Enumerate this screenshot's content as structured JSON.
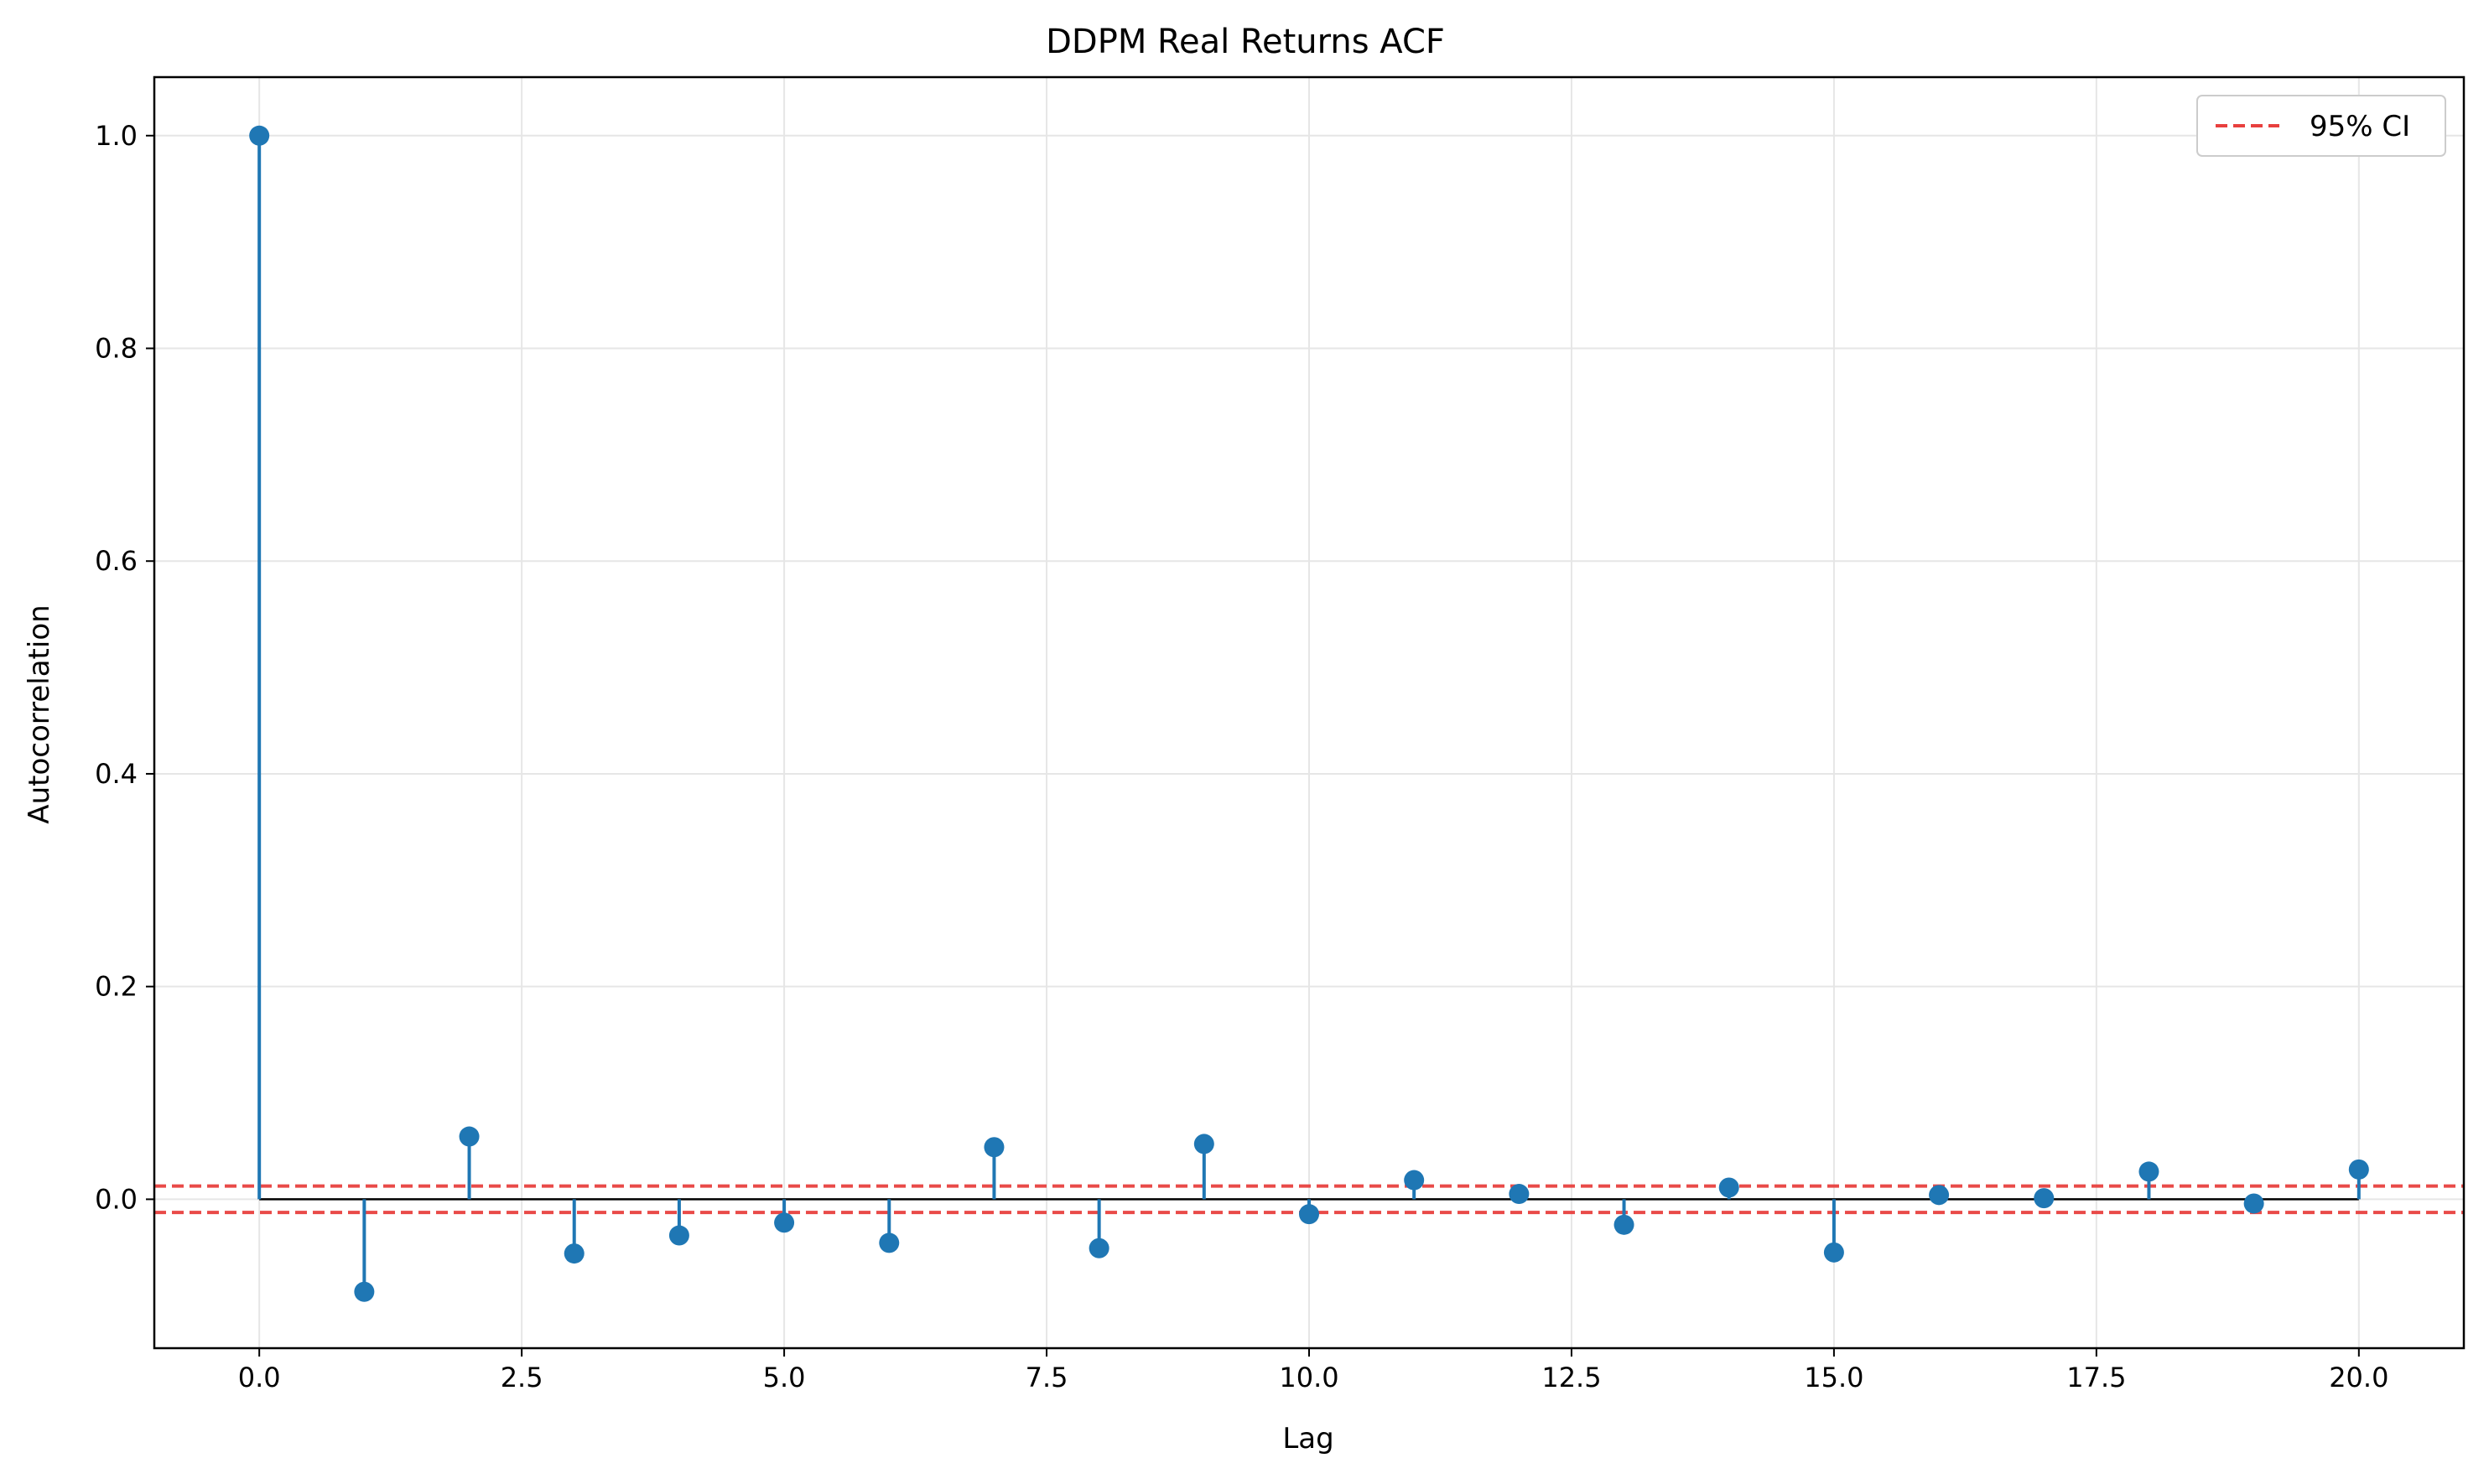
{
  "chart_data": {
    "type": "stem",
    "title": "DDPM Real Returns ACF",
    "xlabel": "Lag",
    "ylabel": "Autocorrelation",
    "xlim": [
      -1,
      21
    ],
    "ylim": [
      -0.14,
      1.055
    ],
    "xticks": [
      0.0,
      2.5,
      5.0,
      7.5,
      10.0,
      12.5,
      15.0,
      17.5,
      20.0
    ],
    "xtick_labels": [
      "0.0",
      "2.5",
      "5.0",
      "7.5",
      "10.0",
      "12.5",
      "15.0",
      "17.5",
      "20.0"
    ],
    "yticks": [
      0.0,
      0.2,
      0.4,
      0.6,
      0.8,
      1.0
    ],
    "ytick_labels": [
      "0.0",
      "0.2",
      "0.4",
      "0.6",
      "0.8",
      "1.0"
    ],
    "grid": true,
    "series": [
      {
        "x": [
          0,
          1,
          2,
          3,
          4,
          5,
          6,
          7,
          8,
          9,
          10,
          11,
          12,
          13,
          14,
          15,
          16,
          17,
          18,
          19,
          20
        ],
        "values": [
          1.0,
          -0.087,
          0.059,
          -0.051,
          -0.034,
          -0.022,
          -0.041,
          0.049,
          -0.046,
          0.052,
          -0.014,
          0.018,
          0.005,
          -0.024,
          0.011,
          -0.05,
          0.004,
          0.001,
          0.026,
          -0.004,
          0.028
        ],
        "color": "#1f77b4"
      }
    ],
    "baseline": 0,
    "confidence_interval": {
      "label": "95% CI",
      "upper": 0.0124,
      "lower": -0.0124,
      "color": "#e8403e",
      "style": "dashed"
    },
    "legend_position": "top-right"
  }
}
